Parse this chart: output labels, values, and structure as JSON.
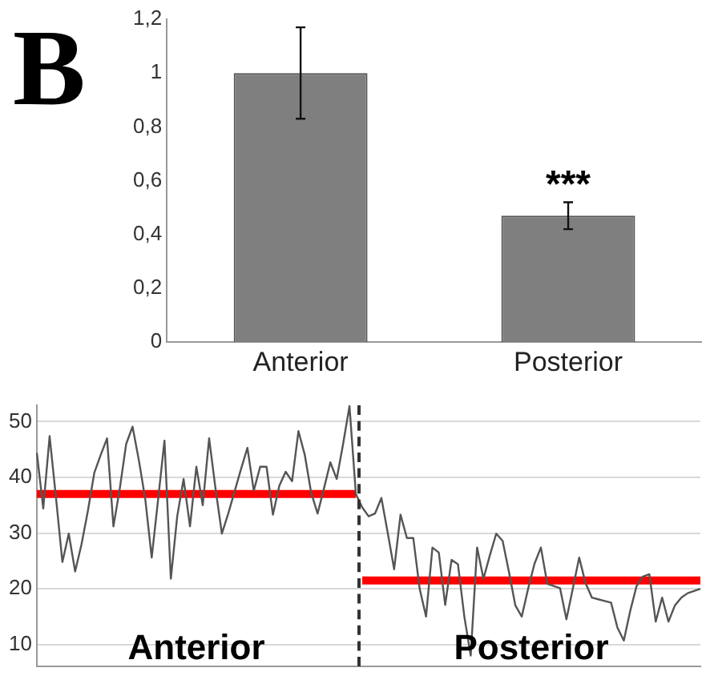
{
  "chart_data": [
    {
      "type": "bar",
      "title": "B",
      "categories": [
        "Anterior",
        "Posterior"
      ],
      "values": [
        1.0,
        0.47
      ],
      "errors": [
        0.17,
        0.05
      ],
      "color": "#7f7f7f",
      "ylim": [
        0,
        1.2
      ],
      "yticks": [
        0,
        {
          "value": 0.2,
          "label": "0,2"
        },
        {
          "value": 0.4,
          "label": "0,4"
        },
        {
          "value": 0.6,
          "label": "0,6"
        },
        {
          "value": 0.8,
          "label": "0,8"
        },
        1,
        {
          "value": 1.2,
          "label": "1,2"
        }
      ],
      "legend": false,
      "annotations": [
        "***"
      ]
    },
    {
      "type": "line",
      "categories": [
        null,
        null,
        null,
        null,
        null,
        null,
        null,
        null,
        null,
        null,
        null,
        null,
        null,
        null,
        null,
        null,
        null,
        null,
        null,
        null,
        null,
        null,
        null,
        null,
        null,
        null,
        null,
        null,
        null,
        null,
        null,
        null,
        null,
        null,
        null,
        null,
        null,
        null,
        null,
        null,
        null,
        null,
        null,
        null,
        null,
        null,
        null,
        null,
        null,
        null,
        null,
        null,
        null,
        null,
        null,
        null,
        null,
        null,
        null,
        null,
        null,
        null,
        null,
        null,
        null,
        null,
        null,
        null,
        null,
        null,
        null,
        null,
        null,
        null,
        null,
        null,
        null,
        null,
        null,
        null,
        null,
        null,
        null,
        null,
        null,
        null,
        null,
        null,
        null,
        null,
        null,
        null,
        null,
        null,
        null,
        null,
        null,
        null,
        null,
        null,
        null,
        null,
        null,
        null,
        null
      ],
      "ylim": [
        6,
        53
      ],
      "yticks": [
        10,
        20,
        30,
        40,
        50
      ],
      "grid": "y",
      "legend": false,
      "tick_labels": "y",
      "marker": "none",
      "series": [
        {
          "color": "#555555",
          "values": [
            44.4,
            34.4,
            47.4,
            36.3,
            24.8,
            29.9,
            23.1,
            28,
            34,
            40.8,
            44,
            47,
            31.2,
            38,
            46,
            49.1,
            43,
            36,
            25.6,
            36,
            46.6,
            21.8,
            33,
            39.7,
            31.2,
            41.9,
            35,
            47,
            38,
            29.9,
            33.5,
            37.5,
            41.5,
            45.3,
            37.6,
            41.9,
            41.9,
            33.3,
            38.5,
            41,
            39.3,
            48.3,
            44,
            37.2,
            33.5,
            38,
            42.7,
            39.7,
            46,
            52.8,
            37,
            34.6,
            33,
            33.5,
            36.3,
            30,
            23.5,
            33.3,
            29.1,
            29.1,
            20,
            15,
            27.4,
            26.5,
            17.1,
            25.2,
            24.4,
            15,
            8,
            27.4,
            21.8,
            26,
            29.9,
            28.6,
            23,
            17,
            15,
            20,
            24.5,
            27.4,
            20.9,
            20.5,
            20.1,
            14.5,
            20,
            25.6,
            21,
            18.4,
            18.1,
            17.8,
            17.5,
            13,
            10.7,
            16,
            20.5,
            22.2,
            22.6,
            14.1,
            18.4,
            14.1,
            17,
            18.4,
            19.2,
            19.6,
            20
          ]
        },
        {
          "color": "#ff0000",
          "values": [
            37,
            37,
            37,
            37,
            37,
            37,
            37,
            37,
            37,
            37,
            37,
            37,
            37,
            37,
            37,
            37,
            37,
            37,
            37,
            37,
            37,
            37,
            37,
            37,
            37,
            37,
            37,
            37,
            37,
            37,
            37,
            37,
            37,
            37,
            37,
            37,
            37,
            37,
            37,
            37,
            37,
            37,
            37,
            37,
            37,
            37,
            37,
            37,
            37,
            37,
            37,
            null,
            null,
            null,
            null,
            null,
            null,
            null,
            null,
            null,
            null,
            null,
            null,
            null,
            null,
            null,
            null,
            null,
            null,
            null,
            null,
            null,
            null,
            null,
            null,
            null,
            null,
            null,
            null,
            null,
            null,
            null,
            null,
            null,
            null,
            null,
            null,
            null,
            null,
            null,
            null,
            null,
            null,
            null,
            null,
            null,
            null,
            null,
            null,
            null,
            null,
            null,
            null,
            null,
            null
          ]
        },
        {
          "color": "#ff0000",
          "values": [
            null,
            null,
            null,
            null,
            null,
            null,
            null,
            null,
            null,
            null,
            null,
            null,
            null,
            null,
            null,
            null,
            null,
            null,
            null,
            null,
            null,
            null,
            null,
            null,
            null,
            null,
            null,
            null,
            null,
            null,
            null,
            null,
            null,
            null,
            null,
            null,
            null,
            null,
            null,
            null,
            null,
            null,
            null,
            null,
            null,
            null,
            null,
            null,
            null,
            null,
            null,
            21.5,
            21.5,
            21.5,
            21.5,
            21.5,
            21.5,
            21.5,
            21.5,
            21.5,
            21.5,
            21.5,
            21.5,
            21.5,
            21.5,
            21.5,
            21.5,
            21.5,
            21.5,
            21.5,
            21.5,
            21.5,
            21.5,
            21.5,
            21.5,
            21.5,
            21.5,
            21.5,
            21.5,
            21.5,
            21.5,
            21.5,
            21.5,
            21.5,
            21.5,
            21.5,
            21.5,
            21.5,
            21.5,
            21.5,
            21.5,
            21.5,
            21.5,
            21.5,
            21.5,
            21.5,
            21.5,
            21.5,
            21.5,
            21.5,
            21.5,
            21.5,
            21.5,
            21.5,
            21.5
          ]
        }
      ],
      "annotations": [
        "Anterior",
        "Posterior"
      ]
    }
  ]
}
